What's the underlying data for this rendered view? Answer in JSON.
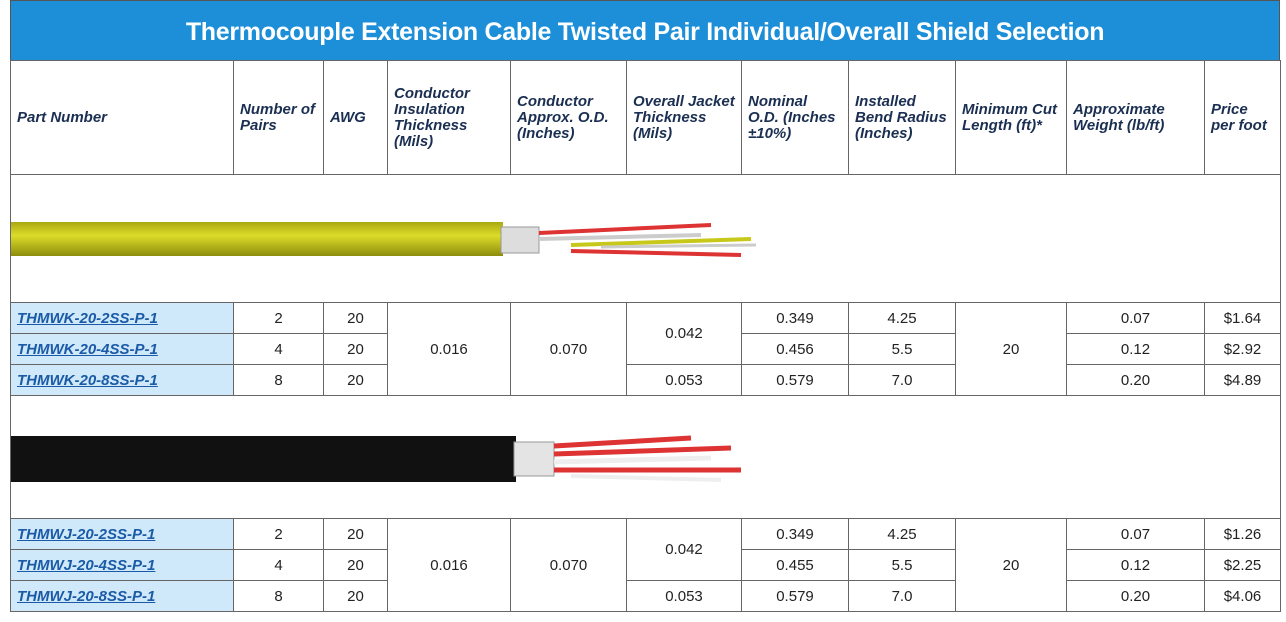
{
  "title": "Thermocouple Extension Cable Twisted Pair Individual/Overall Shield Selection",
  "columns": [
    "Part Number",
    "Number of Pairs",
    "AWG",
    "Conductor Insulation Thickness (Mils)",
    "Conductor Approx. O.D. (Inches)",
    "Overall Jacket Thickness (Mils)",
    "Nominal O.D. (Inches ±10%)",
    "Installed Bend Radius (Inches)",
    "Minimum Cut Length (ft)*",
    "Approximate Weight (lb/ft)",
    "Price per foot"
  ],
  "groups": [
    {
      "rows": [
        [
          "THMWK-20-2SS-P-1",
          "2",
          "20",
          "0.016",
          "0.070",
          "0.042",
          "0.349",
          "4.25",
          "20",
          "0.07",
          "$1.64"
        ],
        [
          "THMWK-20-4SS-P-1",
          "4",
          "20",
          null,
          null,
          null,
          "0.456",
          "5.5",
          null,
          "0.12",
          "$2.92"
        ],
        [
          "THMWK-20-8SS-P-1",
          "8",
          "20",
          null,
          null,
          "0.053",
          "0.579",
          "7.0",
          null,
          "0.20",
          "$4.89"
        ]
      ]
    },
    {
      "rows": [
        [
          "THMWJ-20-2SS-P-1",
          "2",
          "20",
          "0.016",
          "0.070",
          "0.042",
          "0.349",
          "4.25",
          "20",
          "0.07",
          "$1.26"
        ],
        [
          "THMWJ-20-4SS-P-1",
          "4",
          "20",
          null,
          null,
          null,
          "0.455",
          "5.5",
          null,
          "0.12",
          "$2.25"
        ],
        [
          "THMWJ-20-8SS-P-1",
          "8",
          "20",
          null,
          null,
          "0.053",
          "0.579",
          "7.0",
          null,
          "0.20",
          "$4.06"
        ]
      ]
    }
  ]
}
